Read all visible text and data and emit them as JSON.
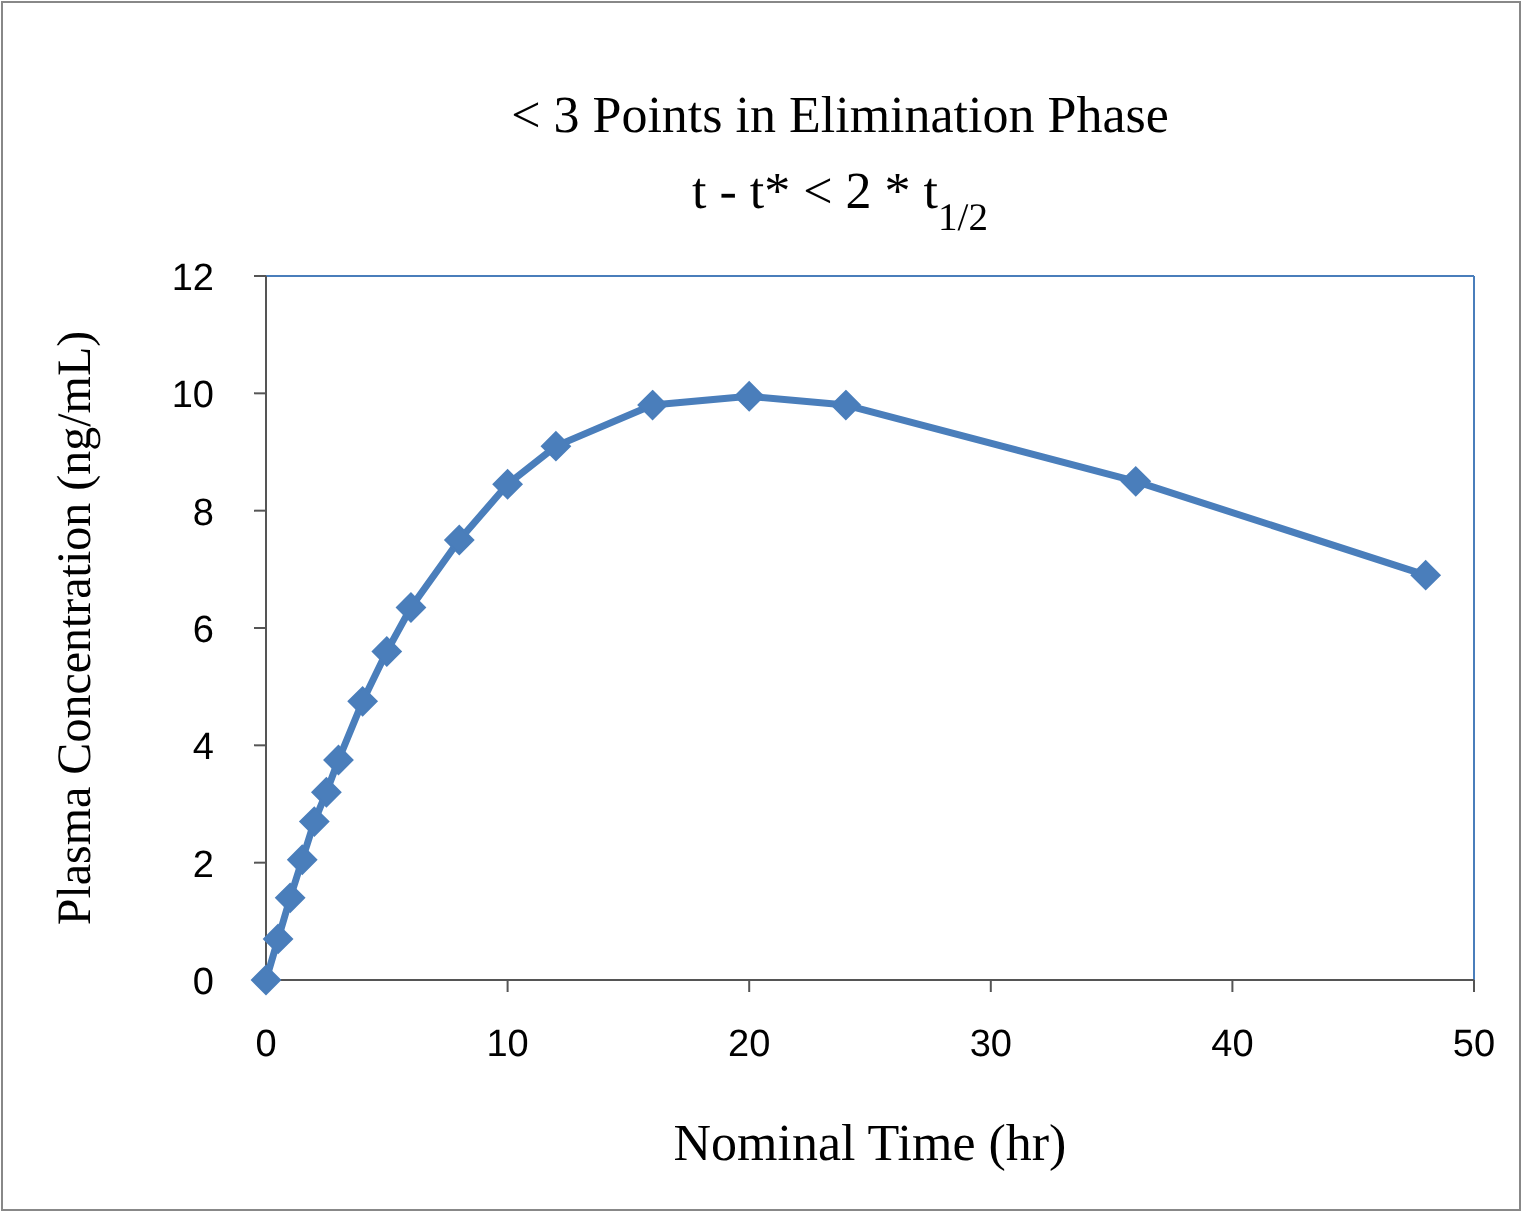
{
  "chart_data": {
    "type": "line",
    "title": "< 3 Points in Elimination Phase",
    "subtitle": "t - t* < 2 * t$_{1/2}$",
    "xlabel": "Nominal Time (hr)",
    "ylabel": "Plasma Concentration (ng/mL)",
    "x": [
      0,
      0.5,
      1,
      1.5,
      2,
      2.5,
      3,
      4,
      5,
      6,
      8,
      10,
      12,
      16,
      20,
      24,
      36,
      48
    ],
    "series": [
      {
        "color": "#4a7ebb",
        "values": [
          0,
          0.7,
          1.4,
          2.05,
          2.7,
          3.2,
          3.75,
          4.75,
          5.6,
          6.35,
          7.5,
          8.45,
          9.1,
          9.8,
          9.95,
          9.8,
          8.5,
          6.9
        ]
      }
    ],
    "xlim": [
      0,
      50
    ],
    "xticks": [
      0,
      10,
      20,
      30,
      40,
      50
    ],
    "ylim": [
      0,
      12
    ],
    "yticks": [
      0,
      2,
      4,
      6,
      8,
      10,
      12
    ],
    "grid": false,
    "marker": "diamond",
    "line_style": "solid"
  }
}
